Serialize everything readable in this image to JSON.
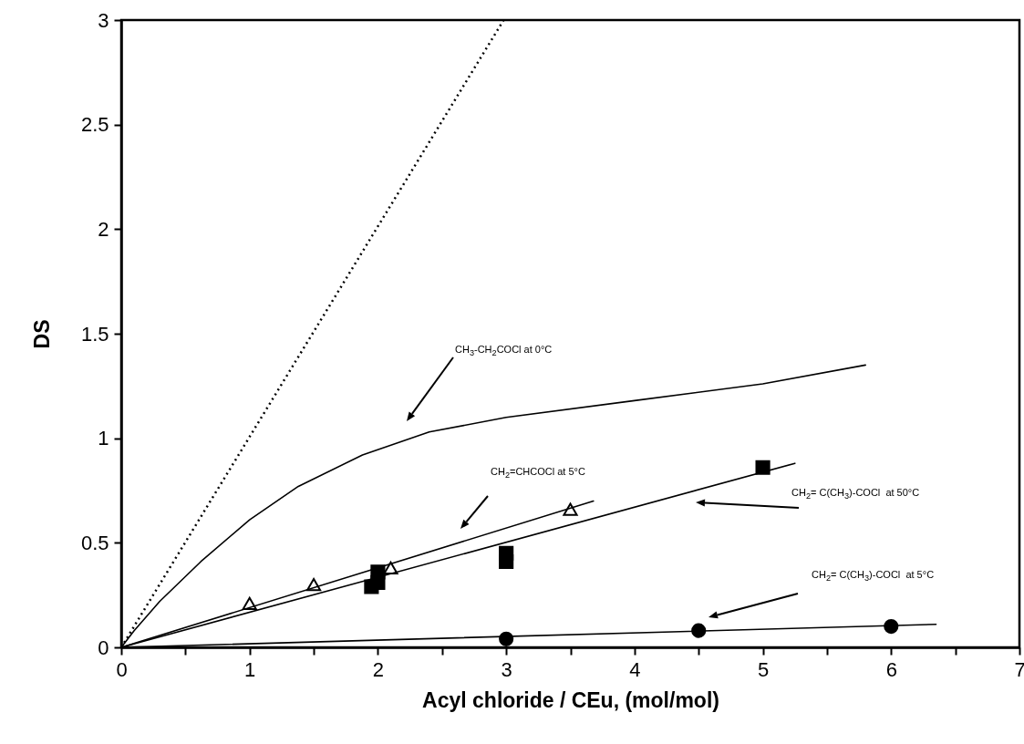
{
  "chart_data": {
    "type": "scatter",
    "xlabel": "Acyl chloride / CEu, (mol/mol)",
    "ylabel": "DS",
    "xlim": [
      0,
      7
    ],
    "ylim": [
      0,
      3
    ],
    "xticks": [
      0,
      {
        "value": 0.5,
        "label": null
      },
      1,
      {
        "value": 1.5,
        "label": null
      },
      2,
      {
        "value": 2.5,
        "label": null
      },
      3,
      {
        "value": 3.5,
        "label": null
      },
      4,
      {
        "value": 4.5,
        "label": null
      },
      5,
      {
        "value": 5.5,
        "label": null
      },
      6,
      {
        "value": 6.5,
        "label": null
      },
      7
    ],
    "yticks": [
      0,
      0.5,
      1,
      1.5,
      2,
      2.5,
      3
    ],
    "grid": false,
    "series": [
      {
        "type": "line",
        "line_style": "dotted",
        "color": "#000000",
        "x": [
          0,
          2.98
        ],
        "values": [
          0,
          3
        ]
      },
      {
        "type": "line",
        "line_style": "solid",
        "color": "#000000",
        "x": [
          0,
          0.1,
          0.3,
          0.62,
          1,
          1.38,
          1.88,
          2.4,
          3,
          4,
          5,
          5.8
        ],
        "values": [
          0,
          0.08,
          0.22,
          0.41,
          0.61,
          0.77,
          0.92,
          1.03,
          1.1,
          1.18,
          1.26,
          1.35
        ]
      },
      {
        "type": "line",
        "line_style": "solid",
        "color": "#000000",
        "x": [
          0,
          3.68
        ],
        "values": [
          0,
          0.7
        ]
      },
      {
        "type": "line",
        "line_style": "solid",
        "color": "#000000",
        "x": [
          0,
          5.25
        ],
        "values": [
          0,
          0.88
        ]
      },
      {
        "type": "line",
        "line_style": "solid",
        "color": "#000000",
        "x": [
          0,
          6.35
        ],
        "values": [
          0,
          0.11
        ]
      },
      {
        "marker": "triangle",
        "color": "#000000",
        "x": [
          1,
          1.5,
          2.1,
          3.5
        ],
        "values": [
          0.21,
          0.3,
          0.38,
          0.66
        ]
      },
      {
        "marker": "square",
        "color": "#000000",
        "x": [
          1.95,
          2,
          2,
          3,
          3,
          5
        ],
        "values": [
          0.29,
          0.31,
          0.36,
          0.41,
          0.45,
          0.86
        ]
      },
      {
        "marker": "circle",
        "color": "#000000",
        "x": [
          3,
          4.5,
          6
        ],
        "values": [
          0.04,
          0.08,
          0.1
        ]
      }
    ],
    "annotations": [
      "CH$_{3}$-CH$_{2}$COCl at 0°C",
      "CH$_{2}$=CHCOCl at 5°C",
      "CH$_{2}$= C(CH$_{3}$)-COCl  at 50°C",
      "CH$_{2}$= C(CH$_{3}$)-COCl  at 5°C"
    ]
  }
}
